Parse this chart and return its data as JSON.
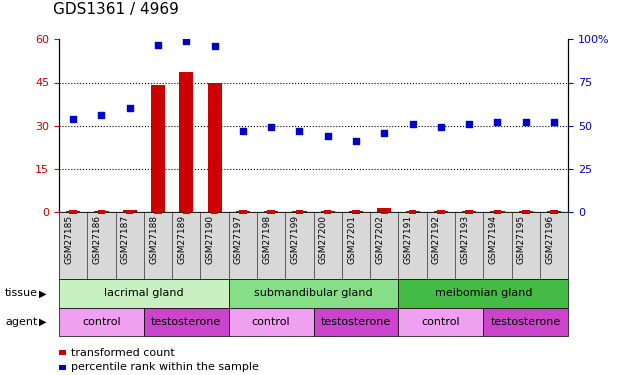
{
  "title": "GDS1361 / 4969",
  "samples": [
    "GSM27185",
    "GSM27186",
    "GSM27187",
    "GSM27188",
    "GSM27189",
    "GSM27190",
    "GSM27197",
    "GSM27198",
    "GSM27199",
    "GSM27200",
    "GSM27201",
    "GSM27202",
    "GSM27191",
    "GSM27192",
    "GSM27193",
    "GSM27194",
    "GSM27195",
    "GSM27196"
  ],
  "red_bars": [
    0.4,
    0.4,
    0.6,
    44.0,
    48.5,
    45.0,
    0.4,
    0.4,
    0.4,
    0.4,
    0.4,
    1.2,
    0.4,
    0.4,
    0.4,
    0.4,
    0.4,
    0.4
  ],
  "blue_dots": [
    54,
    56,
    60,
    97,
    99,
    96,
    47,
    49,
    47,
    44,
    41,
    46,
    51,
    49,
    51,
    52,
    52,
    52
  ],
  "ylim_left": [
    0,
    60
  ],
  "ylim_right": [
    0,
    100
  ],
  "yticks_left": [
    0,
    15,
    30,
    45,
    60
  ],
  "yticks_right": [
    0,
    25,
    50,
    75,
    100
  ],
  "tissue_groups": [
    {
      "label": "lacrimal gland",
      "start": 0,
      "end": 6,
      "color": "#C8F0C0"
    },
    {
      "label": "submandibular gland",
      "start": 6,
      "end": 12,
      "color": "#88DD88"
    },
    {
      "label": "meibomian gland",
      "start": 12,
      "end": 18,
      "color": "#44BB44"
    }
  ],
  "agent_groups": [
    {
      "label": "control",
      "start": 0,
      "end": 3,
      "color": "#F0A0F0"
    },
    {
      "label": "testosterone",
      "start": 3,
      "end": 6,
      "color": "#CC44CC"
    },
    {
      "label": "control",
      "start": 6,
      "end": 9,
      "color": "#F0A0F0"
    },
    {
      "label": "testosterone",
      "start": 9,
      "end": 12,
      "color": "#CC44CC"
    },
    {
      "label": "control",
      "start": 12,
      "end": 15,
      "color": "#F0A0F0"
    },
    {
      "label": "testosterone",
      "start": 15,
      "end": 18,
      "color": "#CC44CC"
    }
  ],
  "red_color": "#CC0000",
  "blue_color": "#0000CC",
  "title_fontsize": 11,
  "label_fontsize": 7.5,
  "tick_fontsize": 8,
  "sample_fontsize": 6.5,
  "row_fontsize": 8,
  "legend_fontsize": 8
}
